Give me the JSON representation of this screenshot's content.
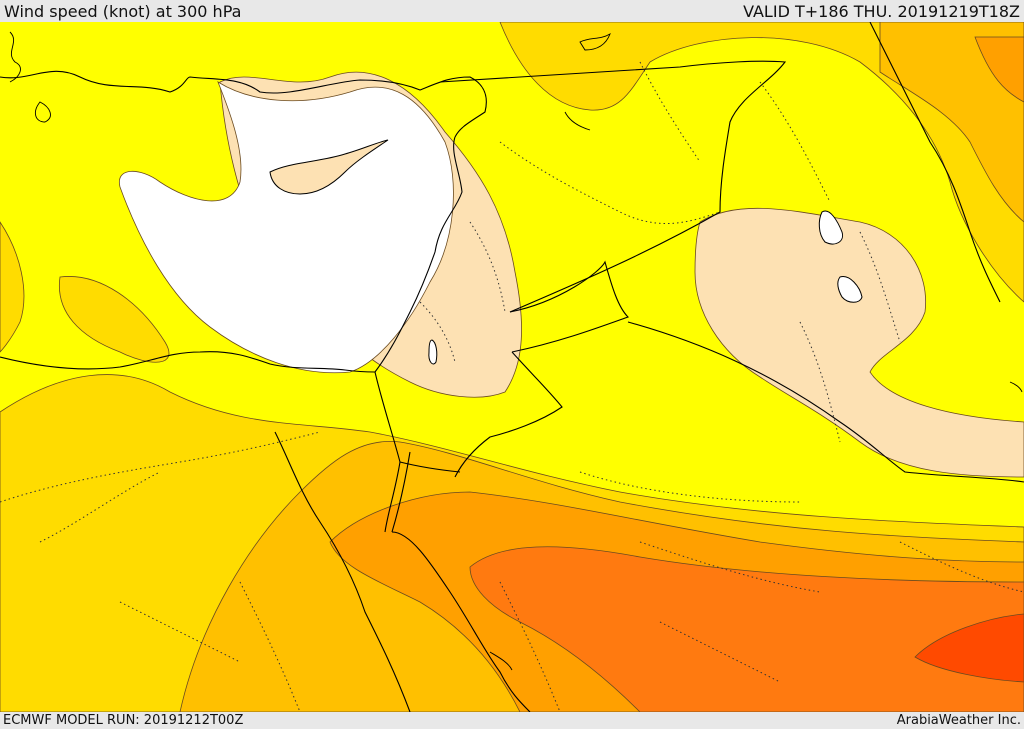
{
  "header": {
    "title": "Wind speed (knot) at 300 hPa",
    "valid": "VALID T+186 THU. 20191219T18Z"
  },
  "footer": {
    "model_run": "ECMWF MODEL RUN: 20191212T00Z",
    "credit": "ArabiaWeather Inc."
  },
  "colors": {
    "band_lightest": "#ffffff",
    "band_cream": "#fde1b3",
    "band_yellow": "#ffff00",
    "band_gold": "#ffdc00",
    "band_amber": "#ffc000",
    "band_orange": "#ffa000",
    "band_darkorange": "#ff7a10",
    "band_redorange": "#ff4a00"
  }
}
